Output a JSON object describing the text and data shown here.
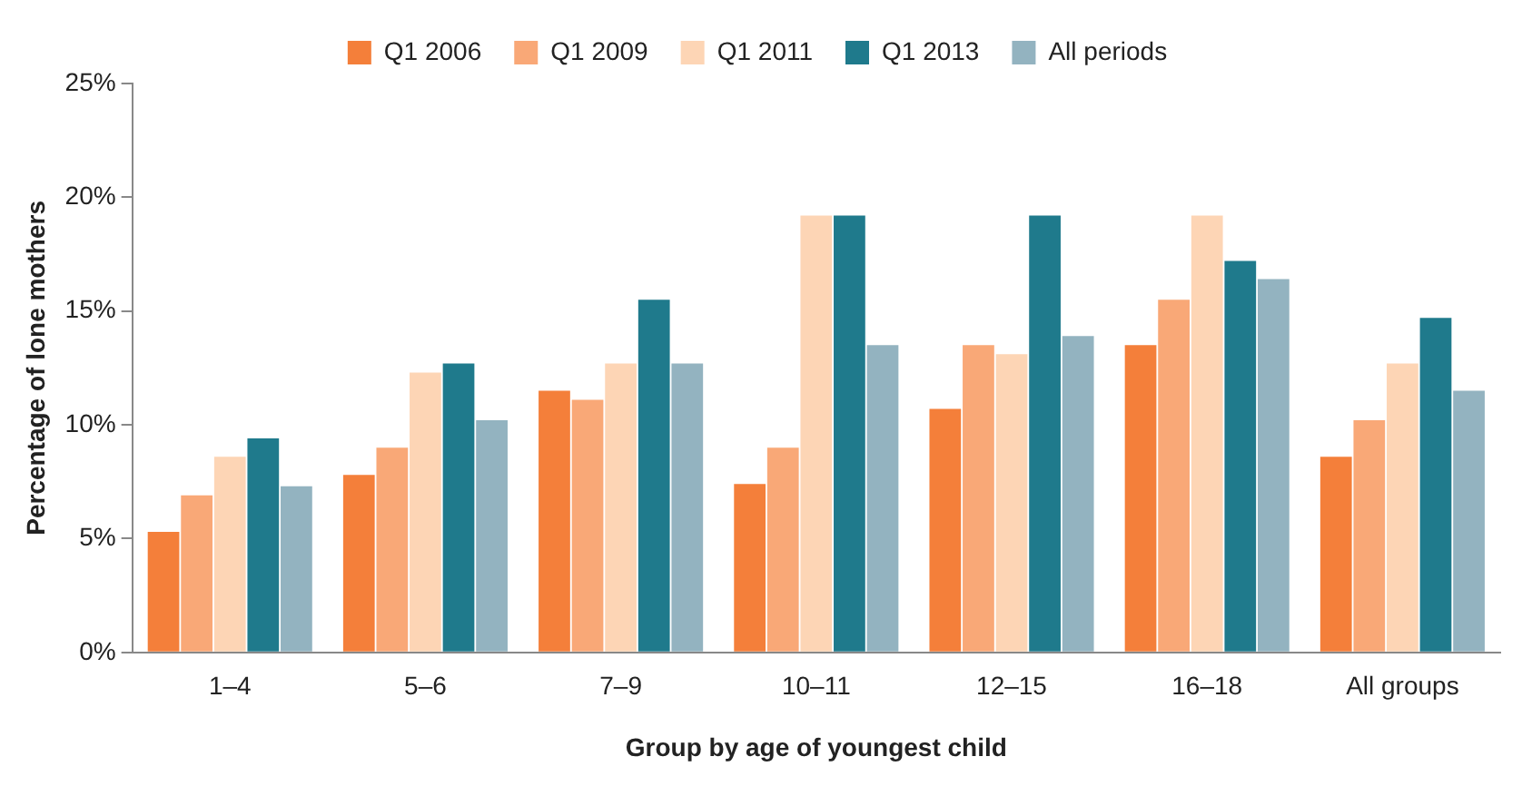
{
  "chart_data": {
    "type": "bar",
    "xlabel": "Group by age of youngest child",
    "ylabel": "Percentage of lone mothers",
    "categories": [
      "1–4",
      "5–6",
      "7–9",
      "10–11",
      "12–15",
      "16–18",
      "All groups"
    ],
    "series": [
      {
        "name": "Q1 2006",
        "color": "#f47f3a",
        "values": [
          5.3,
          7.8,
          11.5,
          7.4,
          10.7,
          13.5,
          8.6
        ]
      },
      {
        "name": "Q1 2009",
        "color": "#f9a877",
        "values": [
          6.9,
          9.0,
          11.1,
          9.0,
          13.5,
          15.5,
          10.2
        ]
      },
      {
        "name": "Q1 2011",
        "color": "#fdd5b5",
        "values": [
          8.6,
          12.3,
          12.7,
          19.2,
          13.1,
          19.2,
          12.7
        ]
      },
      {
        "name": "Q1 2013",
        "color": "#1f7a8c",
        "values": [
          9.4,
          12.7,
          15.5,
          19.2,
          19.2,
          17.2,
          14.7
        ]
      },
      {
        "name": "All periods",
        "color": "#93b3c0",
        "values": [
          7.3,
          10.2,
          12.7,
          13.5,
          13.9,
          16.4,
          11.5
        ]
      }
    ],
    "ylim": [
      0,
      25
    ],
    "yticks": [
      {
        "value": 0,
        "label": "0%"
      },
      {
        "value": 5,
        "label": "5%"
      },
      {
        "value": 10,
        "label": "10%"
      },
      {
        "value": 15,
        "label": "15%"
      },
      {
        "value": 20,
        "label": "20%"
      },
      {
        "value": 25,
        "label": "25%"
      }
    ],
    "grid": false,
    "legend": "top"
  }
}
